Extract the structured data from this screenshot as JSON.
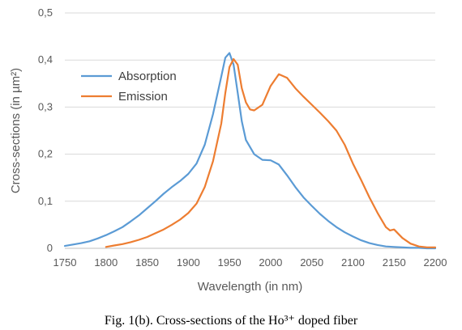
{
  "caption": "Fig. 1(b). Cross-sections of the Ho³⁺ doped fiber",
  "chart_data": {
    "type": "line",
    "xlabel": "Wavelength (in nm)",
    "ylabel": "Cross-sections (in µm²)",
    "xlim": [
      1750,
      2200
    ],
    "ylim": [
      0,
      0.5
    ],
    "x_ticks": [
      1750,
      1800,
      1850,
      1900,
      1950,
      2000,
      2050,
      2100,
      2150,
      2200
    ],
    "x_tick_labels": [
      "1750",
      "1800",
      "1850",
      "1900",
      "1950",
      "2000",
      "2050",
      "2100",
      "2150",
      "2200"
    ],
    "y_ticks": [
      0,
      0.1,
      0.2,
      0.3,
      0.4,
      0.5
    ],
    "y_tick_labels": [
      "0",
      "0,1",
      "0,2",
      "0,3",
      "0,4",
      "0,5"
    ],
    "grid": "horizontal",
    "legend_position": "upper-left",
    "series": [
      {
        "name": "Absorption",
        "color": "#5b9bd5",
        "points": [
          [
            1750,
            0.005
          ],
          [
            1760,
            0.008
          ],
          [
            1770,
            0.011
          ],
          [
            1780,
            0.015
          ],
          [
            1790,
            0.021
          ],
          [
            1800,
            0.028
          ],
          [
            1810,
            0.036
          ],
          [
            1820,
            0.045
          ],
          [
            1830,
            0.057
          ],
          [
            1840,
            0.07
          ],
          [
            1850,
            0.085
          ],
          [
            1860,
            0.1
          ],
          [
            1870,
            0.116
          ],
          [
            1880,
            0.13
          ],
          [
            1890,
            0.143
          ],
          [
            1900,
            0.158
          ],
          [
            1910,
            0.18
          ],
          [
            1920,
            0.22
          ],
          [
            1930,
            0.285
          ],
          [
            1940,
            0.365
          ],
          [
            1945,
            0.405
          ],
          [
            1950,
            0.415
          ],
          [
            1955,
            0.39
          ],
          [
            1960,
            0.33
          ],
          [
            1965,
            0.27
          ],
          [
            1970,
            0.23
          ],
          [
            1980,
            0.2
          ],
          [
            1990,
            0.188
          ],
          [
            2000,
            0.187
          ],
          [
            2010,
            0.178
          ],
          [
            2020,
            0.155
          ],
          [
            2030,
            0.13
          ],
          [
            2040,
            0.108
          ],
          [
            2050,
            0.09
          ],
          [
            2060,
            0.073
          ],
          [
            2070,
            0.058
          ],
          [
            2080,
            0.045
          ],
          [
            2090,
            0.034
          ],
          [
            2100,
            0.025
          ],
          [
            2110,
            0.017
          ],
          [
            2120,
            0.011
          ],
          [
            2130,
            0.007
          ],
          [
            2140,
            0.004
          ],
          [
            2150,
            0.003
          ],
          [
            2160,
            0.002
          ],
          [
            2170,
            0.001
          ],
          [
            2180,
            0.001
          ],
          [
            2190,
            0.0
          ],
          [
            2200,
            0.0
          ]
        ]
      },
      {
        "name": "Emission",
        "color": "#ed7d31",
        "points": [
          [
            1800,
            0.003
          ],
          [
            1810,
            0.006
          ],
          [
            1820,
            0.009
          ],
          [
            1830,
            0.013
          ],
          [
            1840,
            0.018
          ],
          [
            1850,
            0.024
          ],
          [
            1860,
            0.032
          ],
          [
            1870,
            0.04
          ],
          [
            1880,
            0.05
          ],
          [
            1890,
            0.061
          ],
          [
            1900,
            0.075
          ],
          [
            1910,
            0.095
          ],
          [
            1920,
            0.13
          ],
          [
            1930,
            0.185
          ],
          [
            1940,
            0.265
          ],
          [
            1945,
            0.33
          ],
          [
            1950,
            0.385
          ],
          [
            1955,
            0.402
          ],
          [
            1960,
            0.39
          ],
          [
            1965,
            0.34
          ],
          [
            1970,
            0.31
          ],
          [
            1975,
            0.295
          ],
          [
            1980,
            0.293
          ],
          [
            1990,
            0.305
          ],
          [
            2000,
            0.345
          ],
          [
            2010,
            0.37
          ],
          [
            2020,
            0.362
          ],
          [
            2030,
            0.34
          ],
          [
            2040,
            0.322
          ],
          [
            2050,
            0.305
          ],
          [
            2060,
            0.288
          ],
          [
            2070,
            0.27
          ],
          [
            2080,
            0.25
          ],
          [
            2090,
            0.22
          ],
          [
            2100,
            0.18
          ],
          [
            2110,
            0.145
          ],
          [
            2120,
            0.108
          ],
          [
            2130,
            0.075
          ],
          [
            2140,
            0.045
          ],
          [
            2145,
            0.038
          ],
          [
            2150,
            0.04
          ],
          [
            2160,
            0.022
          ],
          [
            2170,
            0.01
          ],
          [
            2180,
            0.004
          ],
          [
            2190,
            0.002
          ],
          [
            2200,
            0.002
          ]
        ]
      }
    ]
  }
}
